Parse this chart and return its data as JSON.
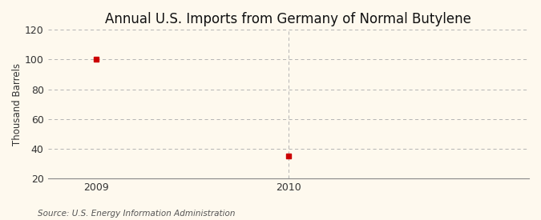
{
  "title": "Annual U.S. Imports from Germany of Normal Butylene",
  "ylabel": "Thousand Barrels",
  "source": "Source: U.S. Energy Information Administration",
  "x": [
    2009,
    2010
  ],
  "y": [
    100,
    35
  ],
  "xlim": [
    2008.75,
    2011.25
  ],
  "ylim": [
    20,
    120
  ],
  "yticks": [
    20,
    40,
    60,
    80,
    100,
    120
  ],
  "xticks": [
    2009,
    2010
  ],
  "marker_color": "#cc0000",
  "marker_size": 4,
  "background_color": "#fef9ee",
  "grid_color": "#aaaaaa",
  "title_fontsize": 12,
  "label_fontsize": 8.5,
  "tick_fontsize": 9,
  "source_fontsize": 7.5,
  "vline_x": 2010
}
